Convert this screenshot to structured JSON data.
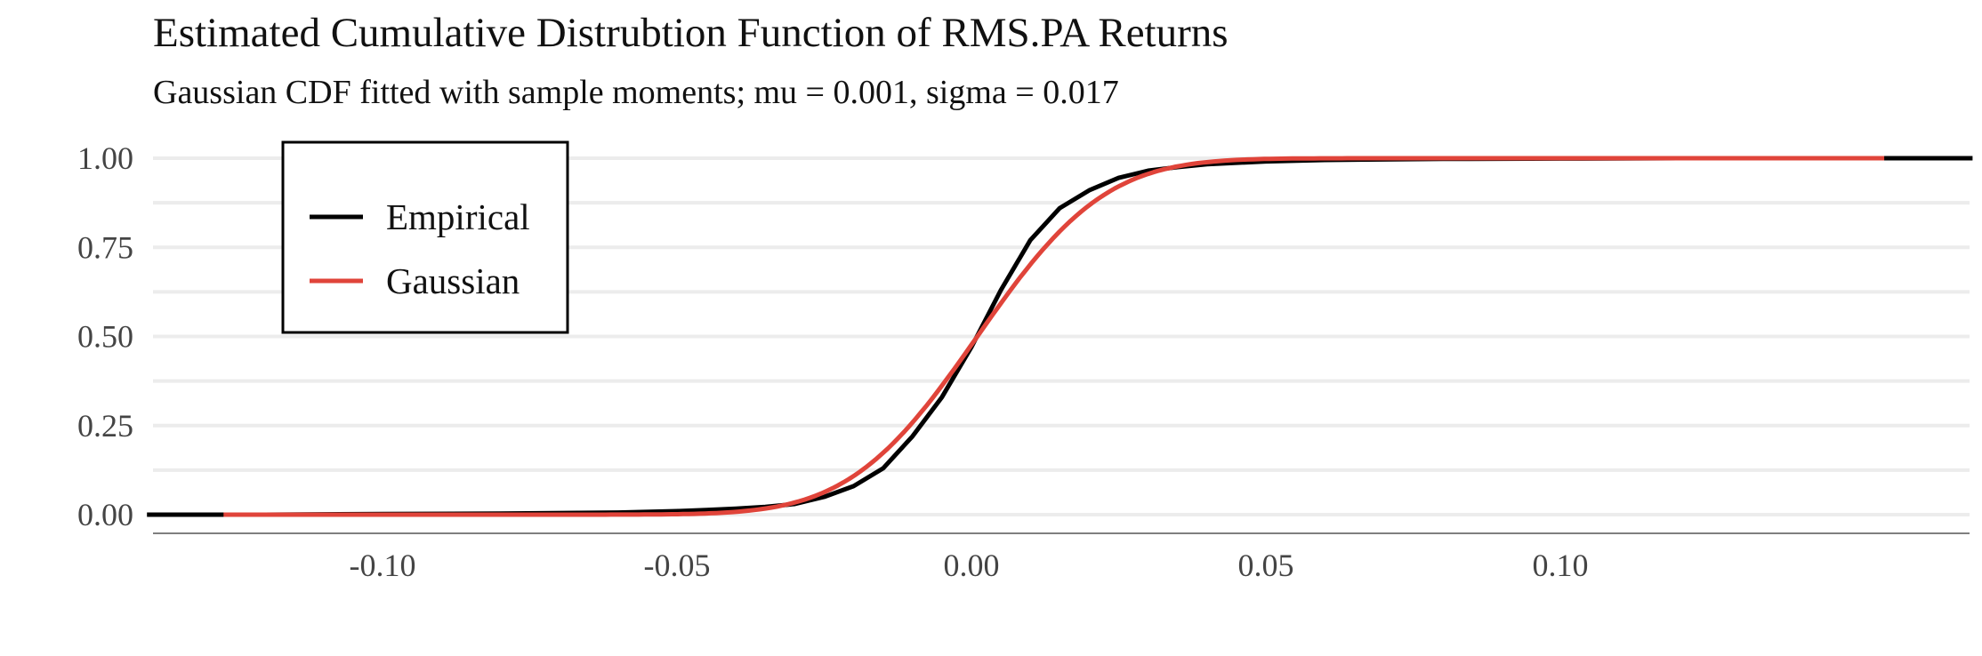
{
  "chart_data": {
    "type": "line",
    "title": "Estimated Cumulative Distrubtion Function of RMS.PA Returns",
    "subtitle": "Gaussian CDF fitted with sample moments; mu = 0.001, sigma = 0.017",
    "xlabel": "",
    "ylabel": "",
    "xlim": [
      -0.14,
      0.17
    ],
    "ylim": [
      0,
      1
    ],
    "x_ticks": [
      -0.1,
      -0.05,
      0.0,
      0.05,
      0.1
    ],
    "x_tick_labels": [
      "-0.10",
      "-0.05",
      "0.00",
      "0.05",
      "0.10"
    ],
    "y_ticks": [
      0,
      0.25,
      0.5,
      0.75,
      1.0
    ],
    "y_tick_labels": [
      "0.00",
      "0.25",
      "0.50",
      "0.75",
      "1.00"
    ],
    "grid": true,
    "legend_position": "top-left",
    "series": [
      {
        "name": "Empirical",
        "color": "#000000",
        "x": [
          -0.14,
          -0.12,
          -0.1,
          -0.08,
          -0.06,
          -0.05,
          -0.045,
          -0.04,
          -0.035,
          -0.03,
          -0.025,
          -0.02,
          -0.015,
          -0.01,
          -0.005,
          0.0,
          0.005,
          0.01,
          0.015,
          0.02,
          0.025,
          0.03,
          0.035,
          0.04,
          0.05,
          0.06,
          0.08,
          0.1,
          0.12,
          0.14,
          0.17
        ],
        "y": [
          0.0,
          0.0,
          0.002,
          0.003,
          0.006,
          0.01,
          0.013,
          0.017,
          0.022,
          0.03,
          0.05,
          0.08,
          0.13,
          0.22,
          0.33,
          0.47,
          0.63,
          0.77,
          0.86,
          0.91,
          0.945,
          0.965,
          0.975,
          0.983,
          0.991,
          0.995,
          0.998,
          0.999,
          1.0,
          1.0,
          1.0
        ]
      },
      {
        "name": "Gaussian",
        "color": "#e0443a",
        "mu": 0.001,
        "sigma": 0.017,
        "x_range": [
          -0.127,
          0.155
        ]
      }
    ]
  }
}
